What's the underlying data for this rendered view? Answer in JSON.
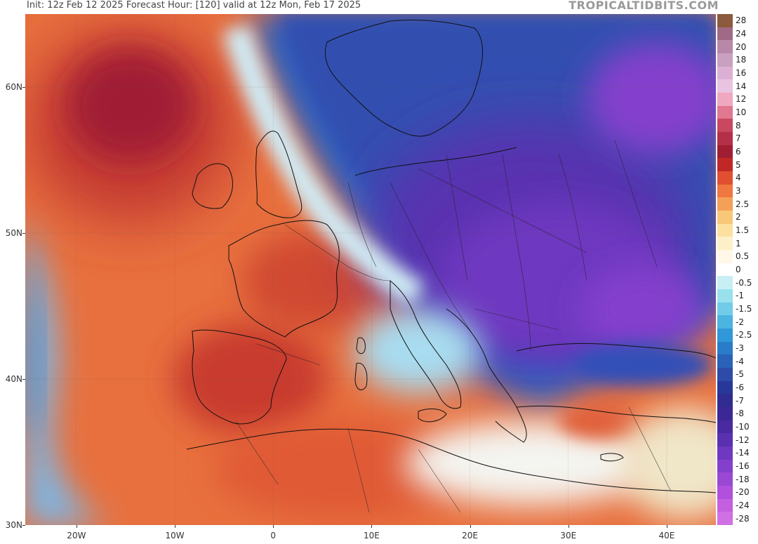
{
  "header": {
    "init_text": "Init: 12z Feb 12 2025   Forecast Hour: [120]   valid at 12z Mon, Feb 17 2025",
    "brand": "TROPICALTIDBITS.COM"
  },
  "map": {
    "lat_labels": [
      "60N",
      "50N",
      "40N",
      "30N"
    ],
    "lon_labels": [
      "20W",
      "10W",
      "0",
      "10E",
      "20E",
      "30E",
      "40E"
    ],
    "lat_values": [
      60,
      50,
      40,
      30
    ],
    "lon_values": [
      -20,
      -10,
      0,
      10,
      20,
      30,
      40
    ]
  },
  "legend": {
    "labels": [
      "28",
      "24",
      "20",
      "18",
      "16",
      "14",
      "12",
      "10",
      "8",
      "7",
      "6",
      "5",
      "4",
      "3",
      "2.5",
      "2",
      "1.5",
      "1",
      "0.5",
      "0",
      "-0.5",
      "-1",
      "-1.5",
      "-2",
      "-2.5",
      "-3",
      "-4",
      "-5",
      "-6",
      "-7",
      "-8",
      "-10",
      "-12",
      "-14",
      "-16",
      "-18",
      "-20",
      "-24",
      "-28"
    ],
    "colors": [
      "#8c5a3c",
      "#a06a86",
      "#b888a8",
      "#c8a0c0",
      "#dcb0d4",
      "#e8c4e0",
      "#f0a8c0",
      "#e07890",
      "#c84860",
      "#b43048",
      "#a01e34",
      "#c02828",
      "#e05030",
      "#f07840",
      "#f4a058",
      "#f8c878",
      "#fbe0a0",
      "#fdf0c8",
      "#fff8e8",
      "#ffffff",
      "#c8f0f4",
      "#98e0ec",
      "#70cce8",
      "#4cb4e0",
      "#3098d8",
      "#2a7cc8",
      "#2a62b8",
      "#2c4ca8",
      "#283898",
      "#302c90",
      "#3c2894",
      "#4a2aa0",
      "#5a30b0",
      "#6e38c0",
      "#8440cc",
      "#9a48d4",
      "#b050dc",
      "#c460e0",
      "#d070e4"
    ]
  },
  "colors": {
    "warm_core": "#a81e2c",
    "warm": "#e0603a",
    "cold_core": "#6a3ad0",
    "cold": "#2e58b8",
    "neutral": "#ffffff"
  }
}
